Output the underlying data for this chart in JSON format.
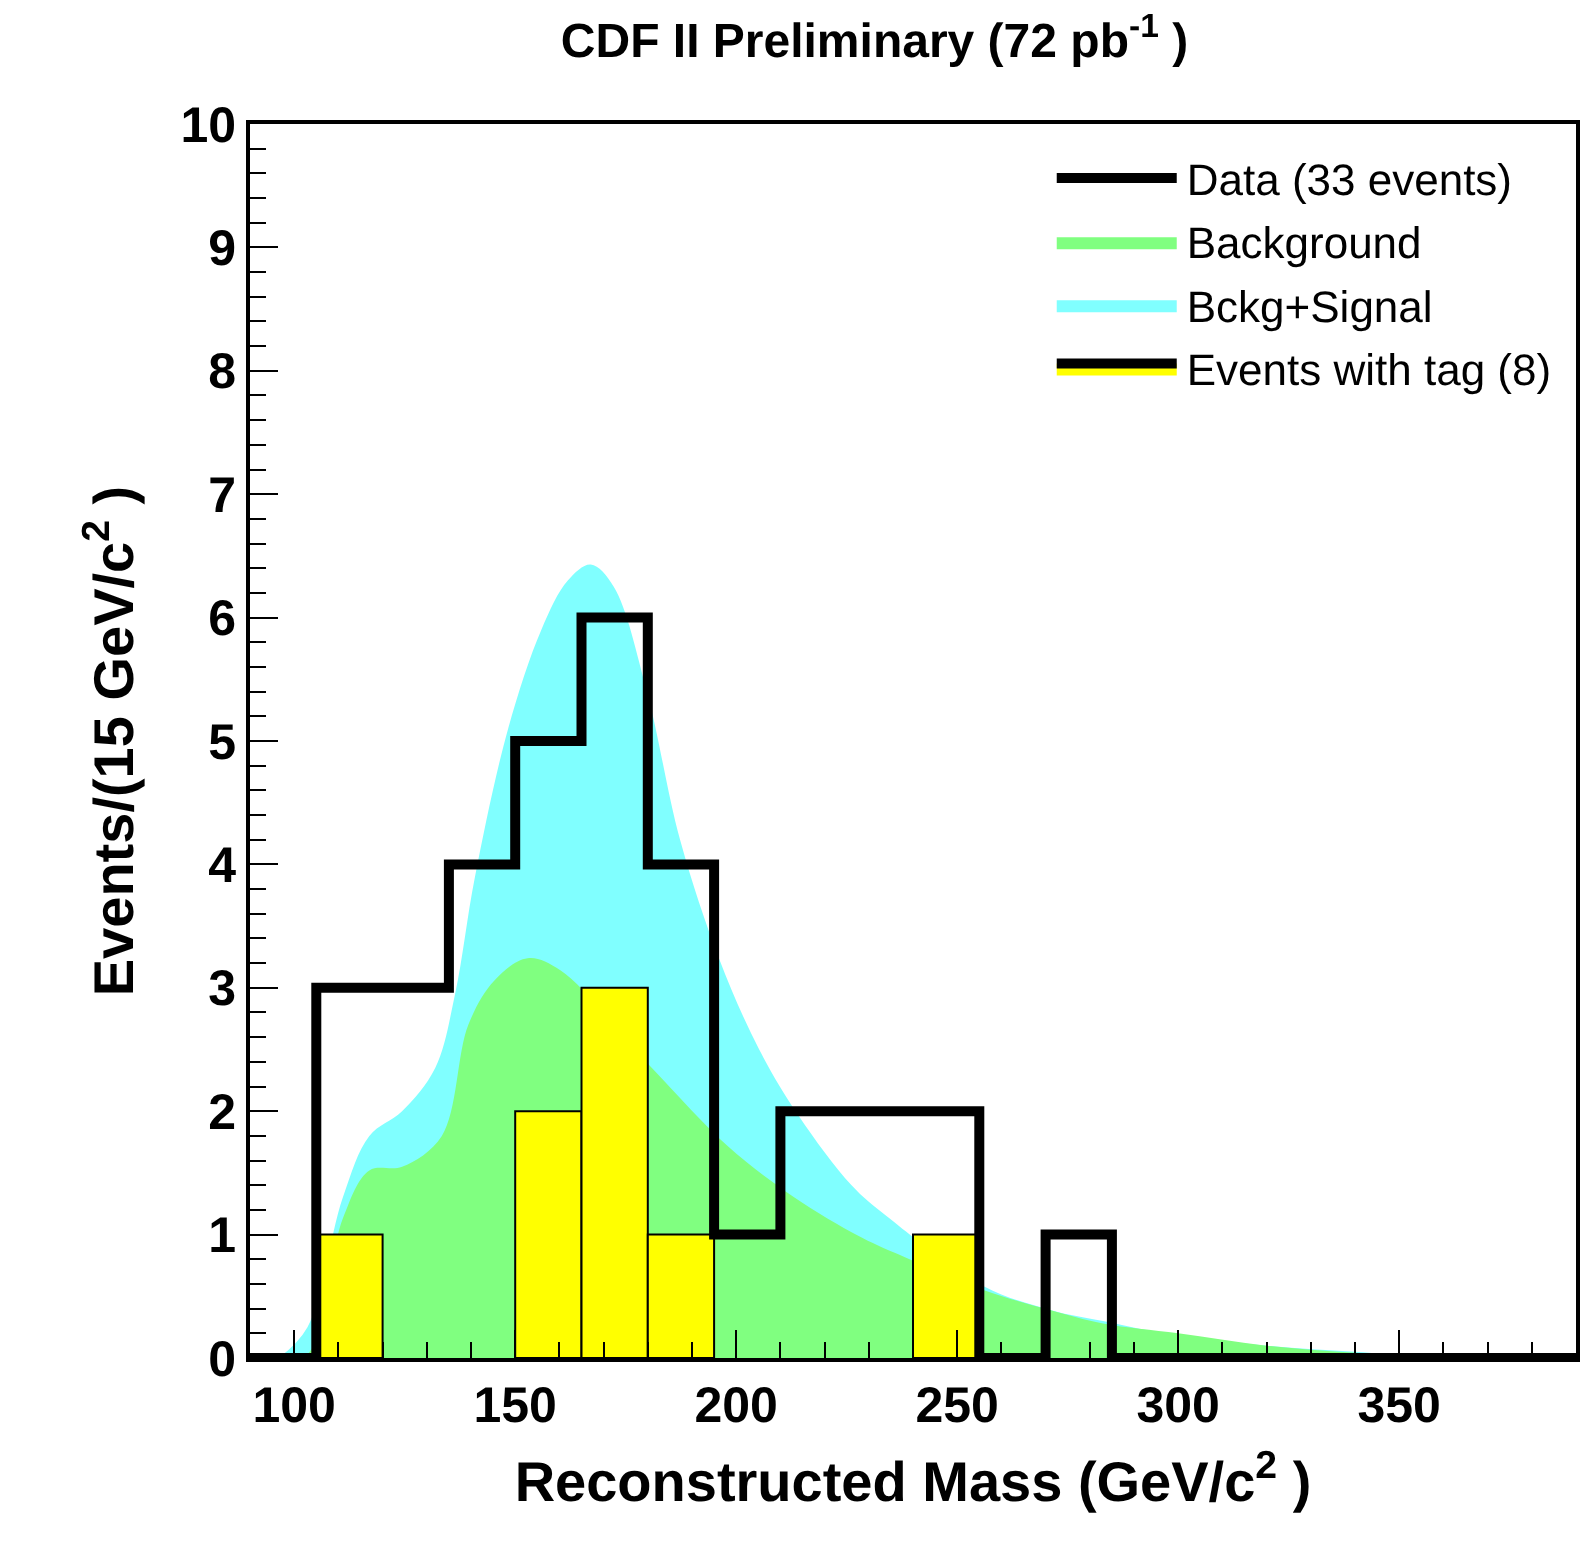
{
  "chart_data": {
    "type": "histogram",
    "title": "CDF II Preliminary (72 pb$^{-1}$ )",
    "xlabel": "Reconstructed Mass (GeV/c$^{2}$ )",
    "ylabel": "Events/(15 GeV/c$^{2}$ )",
    "xlim": [
      90,
      390
    ],
    "xticks": [
      100,
      150,
      200,
      250,
      300,
      350
    ],
    "ylim": [
      0,
      10
    ],
    "yticks": [
      0,
      1,
      2,
      3,
      4,
      5,
      6,
      7,
      8,
      9,
      10
    ],
    "legend": "top right",
    "series": [
      {
        "name": "Data (33 events)",
        "type": "step",
        "color": "#000000",
        "x": [
          90,
          105,
          120,
          135,
          150,
          165,
          180,
          195,
          210,
          225,
          240,
          255,
          270,
          285,
          390
        ],
        "values": [
          0,
          3,
          3,
          4,
          5,
          6,
          4,
          1,
          2,
          2,
          2,
          0,
          1,
          0,
          0
        ]
      },
      {
        "name": "Background",
        "type": "area",
        "color": "#80ff80",
        "x": [
          96,
          103,
          111,
          117,
          124.4,
          133.4,
          139.4,
          145.3,
          152.8,
          160.3,
          181.2,
          198,
          211.2,
          226.1,
          236,
          256.1,
          271,
          283,
          300,
          320,
          345,
          360
        ],
        "values": [
          0,
          0.03,
          1.13,
          1.52,
          1.55,
          1.8,
          2.7,
          3.06,
          3.24,
          3.14,
          2.34,
          1.72,
          1.35,
          1.02,
          0.85,
          0.55,
          0.39,
          0.28,
          0.2,
          0.1,
          0.03,
          0
        ]
      },
      {
        "name": "Bckg+Signal",
        "type": "area",
        "color": "#80ffff",
        "x": [
          96.5,
          103,
          111,
          117,
          124.4,
          131.9,
          136.4,
          140.9,
          148.4,
          155.9,
          161.9,
          167.1,
          172.3,
          179.8,
          187.3,
          196.2,
          205.2,
          214.2,
          226.1,
          234,
          256.1,
          271,
          283,
          300,
          320,
          340,
          360
        ],
        "values": [
          0,
          0.25,
          1.3,
          1.8,
          2.0,
          2.35,
          2.95,
          3.9,
          5.1,
          5.9,
          6.3,
          6.43,
          6.25,
          5.4,
          4.2,
          3.23,
          2.5,
          1.96,
          1.4,
          1.15,
          0.58,
          0.39,
          0.3,
          0.18,
          0.1,
          0.05,
          0
        ]
      },
      {
        "name": "Events with tag (8)",
        "color": "#ffff00",
        "bins": [
          105,
          120,
          135,
          150,
          165,
          180,
          195,
          210,
          225,
          240,
          255
        ],
        "values": [
          1,
          0,
          0,
          2,
          3,
          1,
          0,
          0,
          0,
          1
        ]
      }
    ]
  }
}
